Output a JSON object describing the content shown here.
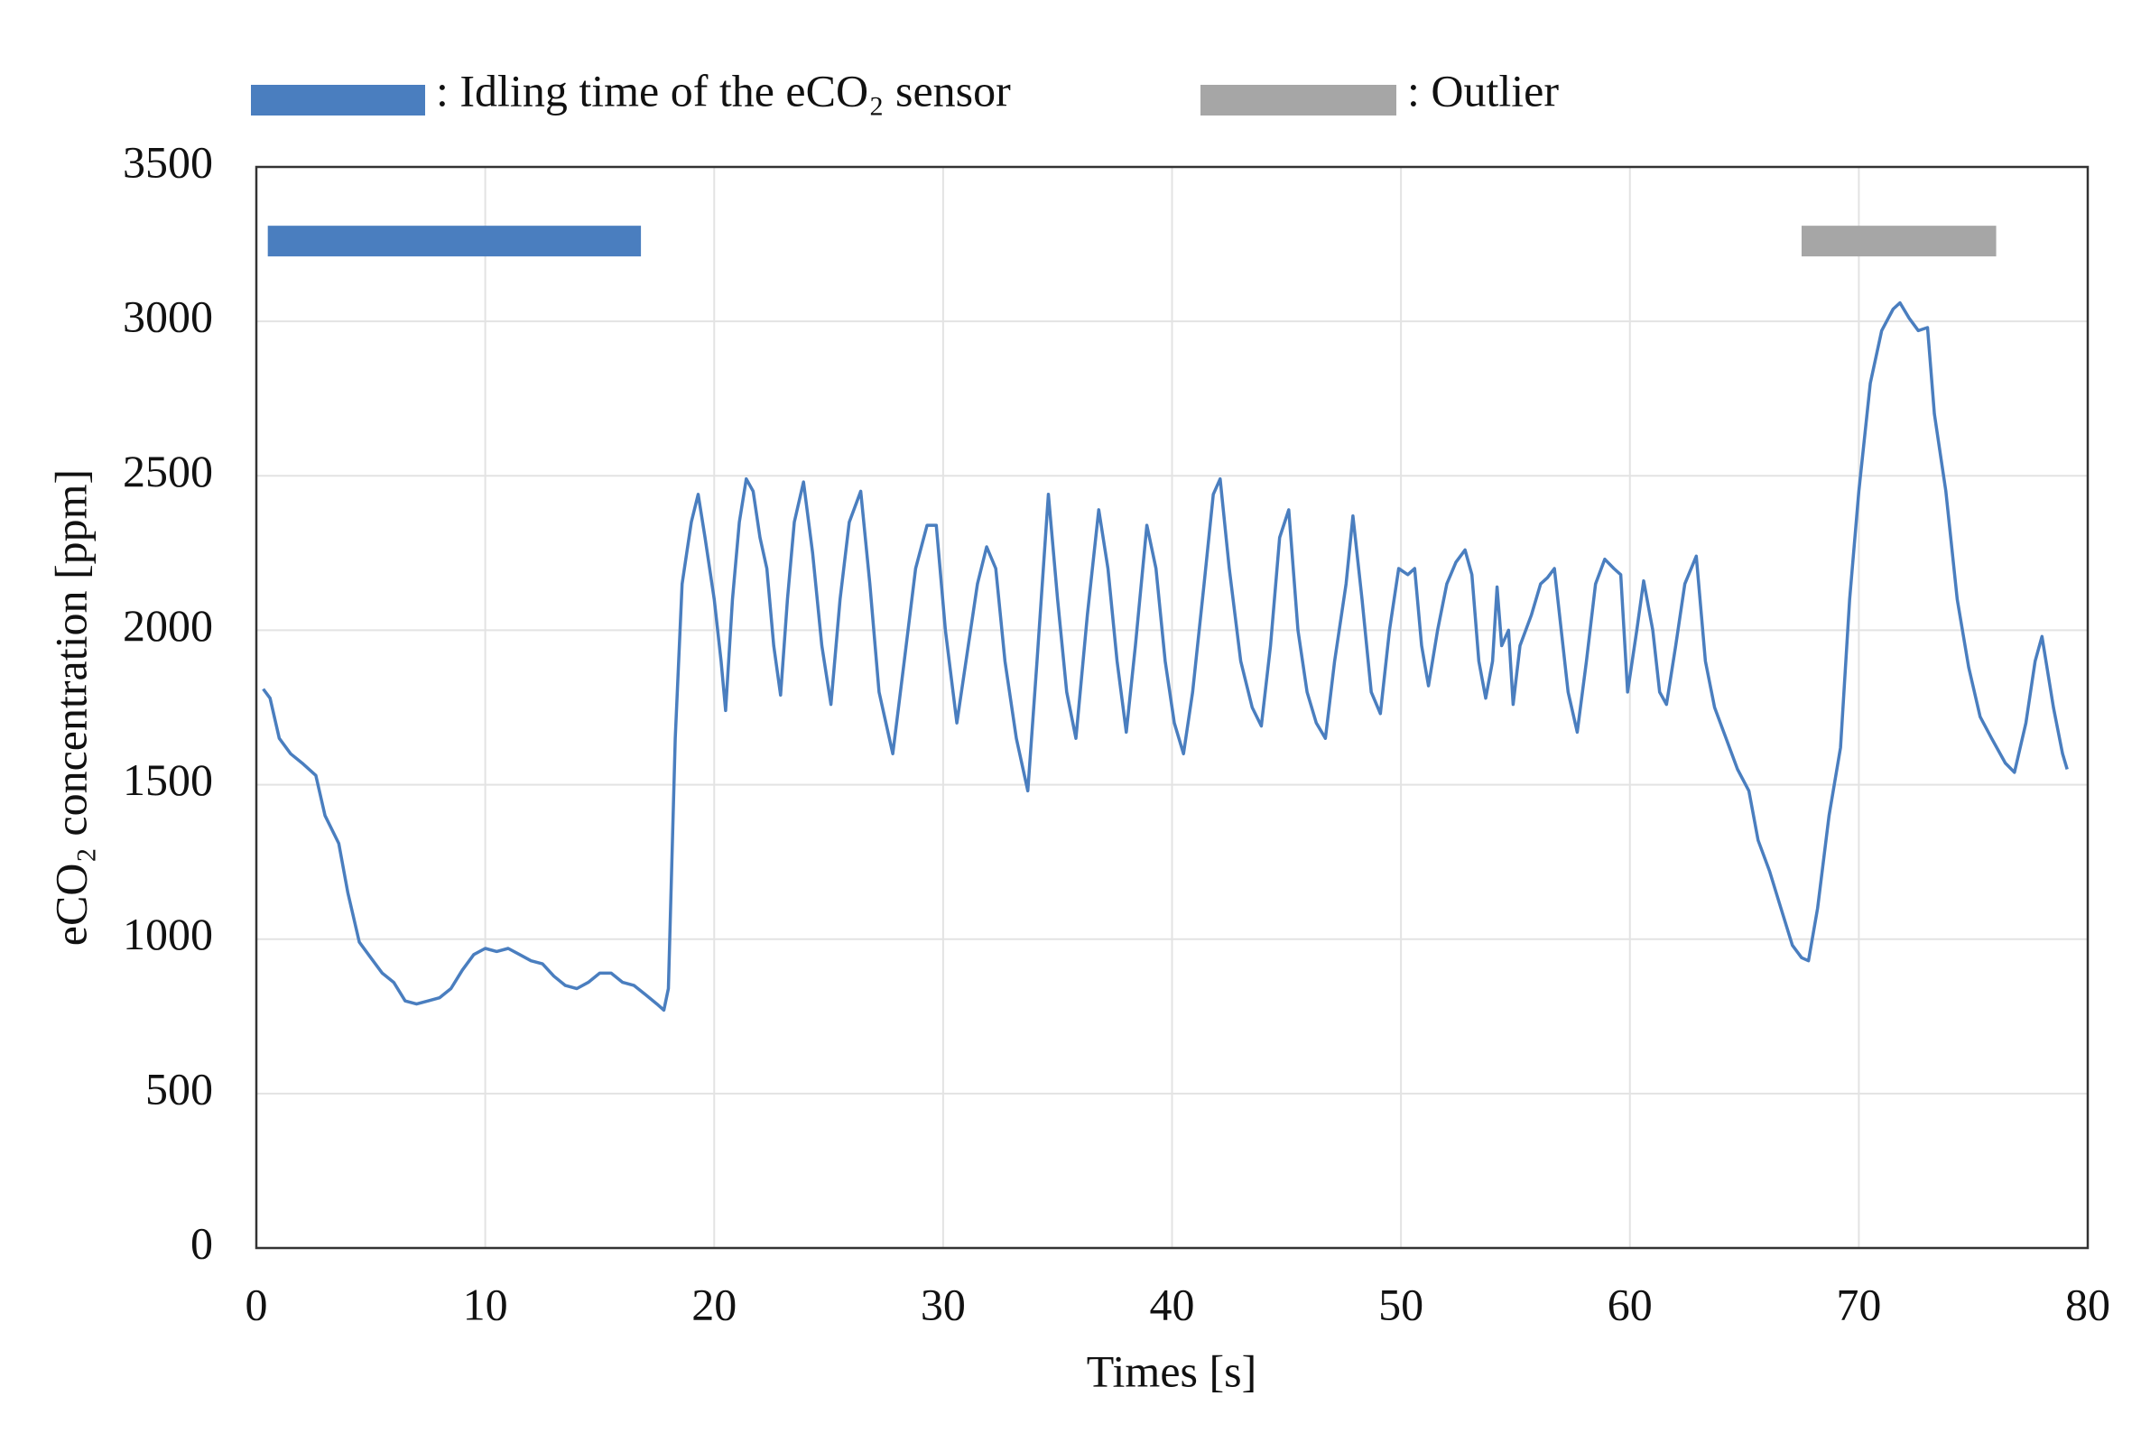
{
  "chart_data": {
    "type": "line",
    "xlabel": "Times [s]",
    "ylabel": "eCO₂ concentration [ppm]",
    "xlim": [
      0,
      80
    ],
    "xticks": [
      0,
      10,
      20,
      30,
      40,
      50,
      60,
      70,
      80
    ],
    "ylim": [
      0,
      3500
    ],
    "yticks": [
      0,
      500,
      1000,
      1500,
      2000,
      2500,
      3000,
      3500
    ],
    "grid": true,
    "x": [
      0.3,
      0.6,
      1,
      1.5,
      2,
      2.6,
      3,
      3.6,
      4,
      4.5,
      5,
      5.5,
      6,
      6.5,
      7,
      7.5,
      8,
      8.5,
      9,
      9.5,
      10,
      10.5,
      11,
      11.5,
      12,
      12.5,
      13,
      13.5,
      14,
      14.5,
      15,
      15.5,
      16,
      16.5,
      17,
      17.5,
      17.8,
      18,
      18.3,
      18.6,
      19,
      19.3,
      19.6,
      20,
      20.3,
      20.5,
      20.8,
      21.1,
      21.4,
      21.7,
      22,
      22.3,
      22.6,
      22.9,
      23.2,
      23.5,
      23.9,
      24.3,
      24.7,
      25.1,
      25.5,
      25.9,
      26.4,
      26.8,
      27.2,
      27.8,
      28.3,
      28.8,
      29.3,
      29.7,
      30.1,
      30.6,
      31,
      31.5,
      31.9,
      32.3,
      32.7,
      33.2,
      33.7,
      34.1,
      34.6,
      35,
      35.4,
      35.8,
      36.3,
      36.8,
      37.2,
      37.6,
      38,
      38.4,
      38.9,
      39.3,
      39.7,
      40.1,
      40.5,
      40.9,
      41.4,
      41.8,
      42.1,
      42.5,
      43,
      43.5,
      43.9,
      44.3,
      44.7,
      45.1,
      45.5,
      45.9,
      46.3,
      46.7,
      47.1,
      47.6,
      47.9,
      48.3,
      48.7,
      49.1,
      49.5,
      49.9,
      50.3,
      50.6,
      50.9,
      51.2,
      51.6,
      52,
      52.4,
      52.8,
      53.1,
      53.4,
      53.7,
      54,
      54.2,
      54.4,
      54.7,
      54.9,
      55.2,
      55.7,
      56.1,
      56.4,
      56.7,
      57,
      57.3,
      57.7,
      58.1,
      58.5,
      58.9,
      59.3,
      59.6,
      59.9,
      60.3,
      60.6,
      61,
      61.3,
      61.6,
      62,
      62.4,
      62.9,
      63.3,
      63.7,
      64.2,
      64.7,
      65.2,
      65.6,
      66.1,
      66.6,
      67.1,
      67.5,
      67.8,
      68.2,
      68.7,
      69.2,
      69.6,
      70,
      70.5,
      71,
      71.5,
      71.8,
      72.2,
      72.6,
      73,
      73.3,
      73.8,
      74.3,
      74.8,
      75.3,
      75.8,
      76.4,
      76.8,
      77.3,
      77.7,
      78,
      78.5,
      78.9,
      79.1
    ],
    "series": [
      {
        "name": "eCO₂",
        "color": "#4a7ebf",
        "values": [
          1810,
          1780,
          1650,
          1600,
          1570,
          1530,
          1400,
          1310,
          1150,
          990,
          940,
          890,
          860,
          800,
          790,
          800,
          810,
          840,
          900,
          950,
          970,
          960,
          970,
          950,
          930,
          920,
          880,
          850,
          840,
          860,
          890,
          890,
          860,
          850,
          820,
          790,
          770,
          840,
          1650,
          2150,
          2350,
          2440,
          2300,
          2100,
          1900,
          1740,
          2100,
          2350,
          2490,
          2450,
          2300,
          2200,
          1950,
          1790,
          2100,
          2350,
          2480,
          2250,
          1950,
          1760,
          2100,
          2350,
          2450,
          2150,
          1800,
          1600,
          1900,
          2200,
          2340,
          2340,
          2000,
          1700,
          1900,
          2150,
          2270,
          2200,
          1900,
          1650,
          1480,
          1900,
          2440,
          2100,
          1800,
          1650,
          2050,
          2390,
          2200,
          1900,
          1670,
          1950,
          2340,
          2200,
          1900,
          1700,
          1600,
          1800,
          2150,
          2440,
          2490,
          2200,
          1900,
          1750,
          1690,
          1950,
          2300,
          2390,
          2000,
          1800,
          1700,
          1650,
          1900,
          2150,
          2370,
          2100,
          1800,
          1730,
          2000,
          2200,
          2180,
          2200,
          1950,
          1820,
          2000,
          2150,
          2220,
          2260,
          2180,
          1900,
          1780,
          1900,
          2140,
          1950,
          2000,
          1760,
          1950,
          2050,
          2150,
          2170,
          2200,
          2000,
          1800,
          1670,
          1900,
          2150,
          2230,
          2200,
          2180,
          1800,
          2000,
          2160,
          2000,
          1800,
          1760,
          1950,
          2150,
          2240,
          1900,
          1750,
          1650,
          1550,
          1480,
          1320,
          1220,
          1100,
          980,
          940,
          930,
          1100,
          1400,
          1620,
          2100,
          2450,
          2800,
          2970,
          3040,
          3060,
          3010,
          2970,
          2980,
          2700,
          2450,
          2100,
          1880,
          1720,
          1650,
          1570,
          1540,
          1700,
          1900,
          1980,
          1750,
          1600,
          1550
        ]
      }
    ],
    "ranges": [
      {
        "name": ": Idling time of the eCO₂ sensor",
        "color": "#4a7ebf",
        "x": [
          0.5,
          16.8
        ],
        "y": 3260
      },
      {
        "name": ": Outlier",
        "color": "#a6a6a6",
        "x": [
          67.5,
          76
        ],
        "y": 3260
      }
    ]
  }
}
